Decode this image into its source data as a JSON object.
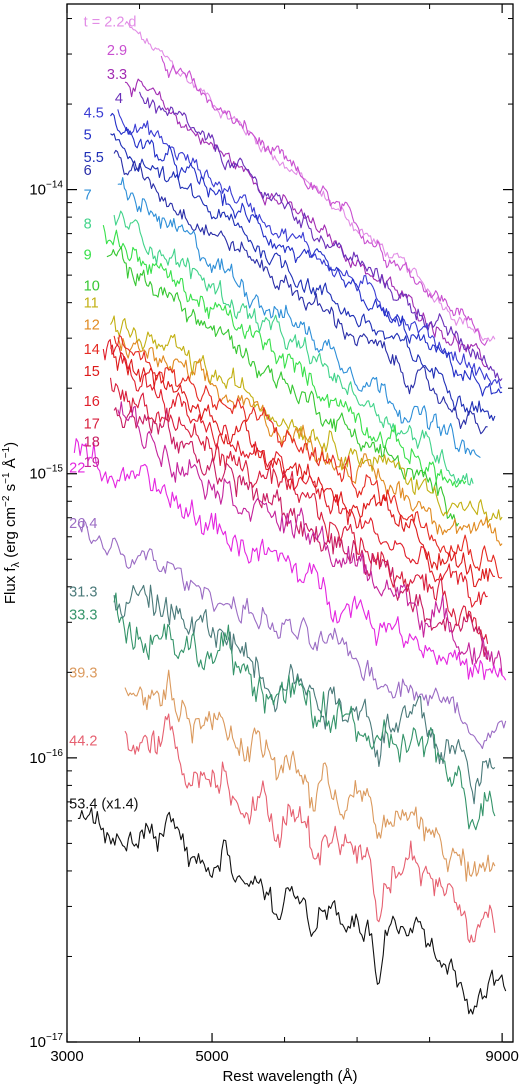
{
  "chart_data": {
    "type": "line",
    "xlabel": "Rest wavelength (Å)",
    "ylabel_parts": [
      "Flux f",
      "λ",
      " (erg cm",
      "−2",
      " s",
      "−1",
      " Å",
      "−1",
      ")"
    ],
    "x_range": [
      3000,
      9150
    ],
    "y_range": [
      1e-17,
      4.5e-14
    ],
    "y_scale": "log",
    "x_ticks": [
      {
        "value": 3000,
        "label": "3000"
      },
      {
        "value": 5000,
        "label": "5000"
      },
      {
        "value": 9000,
        "label": "9000"
      }
    ],
    "x_minor_ticks": [
      4000,
      6000,
      7000,
      8000
    ],
    "y_ticks": [
      {
        "value": 1e-17,
        "base": "10",
        "exp": "−17"
      },
      {
        "value": 1e-16,
        "base": "10",
        "exp": "−16"
      },
      {
        "value": 1e-15,
        "base": "10",
        "exp": "−15"
      },
      {
        "value": 1e-14,
        "base": "10",
        "exp": "−14"
      }
    ],
    "series": [
      {
        "label": "t = 2.2 d",
        "color": "#e28de6",
        "x_start": 3800,
        "x_end": 8900,
        "flux_start": 3.8e-14,
        "flux_end": 2.8e-15,
        "noise": 0.03,
        "label_x": 3230,
        "label_y": 3.9e-14
      },
      {
        "label": "2.9",
        "color": "#c94fd0",
        "x_start": 4300,
        "x_end": 8800,
        "flux_start": 2.9e-14,
        "flux_end": 3e-15,
        "noise": 0.035,
        "label_x": 3550,
        "label_y": 3.1e-14
      },
      {
        "label": "3.3",
        "color": "#a22cb2",
        "x_start": 3800,
        "x_end": 8800,
        "flux_start": 2.5e-14,
        "flux_end": 2.4e-15,
        "noise": 0.035,
        "label_x": 3550,
        "label_y": 2.55e-14
      },
      {
        "label": "4",
        "color": "#6a2fb8",
        "x_start": 4000,
        "x_end": 9000,
        "flux_start": 2.2e-14,
        "flux_end": 2.2e-15,
        "noise": 0.04,
        "label_x": 3660,
        "label_y": 2.1e-14
      },
      {
        "label": "4.5",
        "color": "#3b3dd4",
        "x_start": 3700,
        "x_end": 9000,
        "flux_start": 1.9e-14,
        "flux_end": 2e-15,
        "noise": 0.04,
        "label_x": 3230,
        "label_y": 1.87e-14
      },
      {
        "label": "5",
        "color": "#2430c8",
        "x_start": 3600,
        "x_end": 9000,
        "flux_start": 1.75e-14,
        "flux_end": 1.8e-15,
        "noise": 0.045,
        "label_x": 3230,
        "label_y": 1.56e-14
      },
      {
        "label": "5.5",
        "color": "#1f2fb6",
        "x_start": 3600,
        "x_end": 8900,
        "flux_start": 1.5e-14,
        "flux_end": 1.6e-15,
        "noise": 0.045,
        "label_x": 3230,
        "label_y": 1.3e-14
      },
      {
        "label": "6",
        "color": "#2a2ea8",
        "x_start": 3650,
        "x_end": 8800,
        "flux_start": 1.3e-14,
        "flux_end": 1.4e-15,
        "noise": 0.045,
        "label_x": 3230,
        "label_y": 1.17e-14
      },
      {
        "label": "7",
        "color": "#2e8fd8",
        "x_start": 3700,
        "x_end": 8700,
        "flux_start": 1e-14,
        "flux_end": 1.1e-15,
        "noise": 0.05,
        "label_x": 3230,
        "label_y": 9.6e-15
      },
      {
        "label": "8",
        "color": "#41d38a",
        "x_start": 3650,
        "x_end": 8600,
        "flux_start": 8.2e-15,
        "flux_end": 9.5e-16,
        "noise": 0.05,
        "label_x": 3230,
        "label_y": 7.6e-15
      },
      {
        "label": "9",
        "color": "#38e04a",
        "x_start": 3500,
        "x_end": 8500,
        "flux_start": 7.2e-15,
        "flux_end": 8.5e-16,
        "noise": 0.05,
        "label_x": 3230,
        "label_y": 5.9e-15
      },
      {
        "label": "10",
        "color": "#36c732",
        "x_start": 3550,
        "x_end": 8400,
        "flux_start": 6e-15,
        "flux_end": 7.5e-16,
        "noise": 0.05,
        "label_x": 3230,
        "label_y": 4.6e-15
      },
      {
        "label": "11",
        "color": "#c2b013",
        "x_start": 3600,
        "x_end": 9000,
        "flux_start": 3.4e-15,
        "flux_end": 6.5e-16,
        "noise": 0.055,
        "label_x": 3230,
        "label_y": 4e-15
      },
      {
        "label": "12",
        "color": "#e08a20",
        "x_start": 3700,
        "x_end": 9000,
        "flux_start": 3e-15,
        "flux_end": 5.5e-16,
        "noise": 0.055,
        "label_x": 3230,
        "label_y": 3.35e-15
      },
      {
        "label": "14",
        "color": "#e52a22",
        "x_start": 3650,
        "x_end": 9000,
        "flux_start": 3e-15,
        "flux_end": 4.8e-16,
        "noise": 0.06,
        "label_x": 3230,
        "label_y": 2.75e-15
      },
      {
        "label": "15",
        "color": "#dd1a1a",
        "x_start": 3600,
        "x_end": 8900,
        "flux_start": 2.6e-15,
        "flux_end": 4e-16,
        "noise": 0.06,
        "label_x": 3230,
        "label_y": 2.3e-15
      },
      {
        "label": "16",
        "color": "#e01e2a",
        "x_start": 3500,
        "x_end": 8800,
        "flux_start": 2.6e-15,
        "flux_end": 3.4e-16,
        "noise": 0.065,
        "label_x": 3230,
        "label_y": 1.8e-15
      },
      {
        "label": "17",
        "color": "#d81e3c",
        "x_start": 3600,
        "x_end": 8800,
        "flux_start": 2.1e-15,
        "flux_end": 2.9e-16,
        "noise": 0.065,
        "label_x": 3230,
        "label_y": 1.5e-15
      },
      {
        "label": "18",
        "color": "#c81c60",
        "x_start": 3650,
        "x_end": 8800,
        "flux_start": 1.8e-15,
        "flux_end": 2.5e-16,
        "noise": 0.07,
        "label_x": 3230,
        "label_y": 1.3e-15
      },
      {
        "label": "19",
        "color": "#c4239c",
        "x_start": 3700,
        "x_end": 9000,
        "flux_start": 1.6e-15,
        "flux_end": 2.2e-16,
        "noise": 0.07,
        "label_x": 3230,
        "label_y": 1.1e-15
      },
      {
        "label": "22",
        "color": "#e426e0",
        "x_start": 3100,
        "x_end": 9050,
        "flux_start": 1.2e-15,
        "flux_end": 1.8e-16,
        "noise": 0.07,
        "label_x": 3030,
        "label_y": 1.05e-15
      },
      {
        "label": "26.4",
        "color": "#9b6cc4",
        "x_start": 3150,
        "x_end": 9050,
        "flux_start": 6.2e-16,
        "flux_end": 1.25e-16,
        "noise": 0.06,
        "label_x": 3030,
        "label_y": 6.7e-16
      },
      {
        "label": "31.3",
        "color": "#4b7a7a",
        "x_start": 3650,
        "x_end": 8900,
        "flux_start": 3.9e-16,
        "flux_end": 9e-17,
        "noise": 0.09,
        "label_x": 3030,
        "label_y": 3.85e-16
      },
      {
        "label": "33.3",
        "color": "#35946a",
        "x_start": 3650,
        "x_end": 8900,
        "flux_start": 3.3e-16,
        "flux_end": 7.5e-17,
        "noise": 0.09,
        "label_x": 3030,
        "label_y": 3.2e-16
      },
      {
        "label": "39.3",
        "color": "#db9a5e",
        "x_start": 3800,
        "x_end": 8900,
        "flux_start": 1.9e-16,
        "flux_end": 4e-17,
        "noise": 0.08,
        "label_x": 3030,
        "label_y": 2e-16
      },
      {
        "label": "44.2",
        "color": "#e66070",
        "x_start": 3800,
        "x_end": 8900,
        "flux_start": 1.2e-16,
        "flux_end": 2.8e-17,
        "noise": 0.08,
        "label_x": 3030,
        "label_y": 1.15e-16
      },
      {
        "label": "53.4 (x1.4)",
        "color": "#111111",
        "x_start": 3150,
        "x_end": 9050,
        "flux_start": 6.4e-17,
        "flux_end": 1.6e-17,
        "noise": 0.07,
        "label_x": 3030,
        "label_y": 6.9e-17
      }
    ]
  }
}
